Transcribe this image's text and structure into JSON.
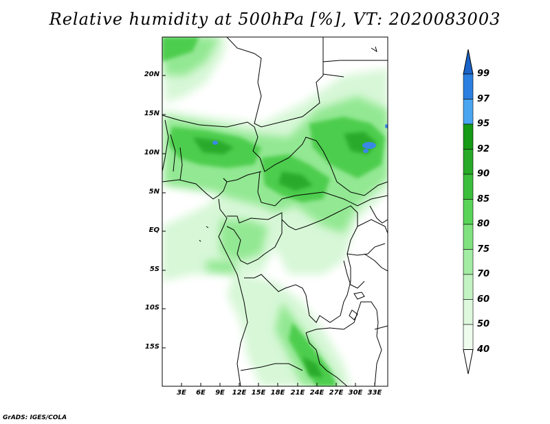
{
  "title": "Relative humidity at 500hPa [%], VT: 2020083003",
  "credit": "GrADS: IGES/COLA",
  "lat_labels": [
    "20N",
    "15N",
    "10N",
    "5N",
    "EQ",
    "5S",
    "10S",
    "15S"
  ],
  "lon_labels": [
    "3E",
    "6E",
    "9E",
    "12E",
    "15E",
    "18E",
    "21E",
    "24E",
    "27E",
    "30E",
    "33E"
  ],
  "colorbar": {
    "labels": [
      "99",
      "97",
      "95",
      "92",
      "90",
      "85",
      "80",
      "75",
      "70",
      "60",
      "50",
      "40"
    ],
    "colors": [
      "#1a63c9",
      "#2a7fe0",
      "#4aa5f0",
      "#149a14",
      "#27aa27",
      "#3cbe3c",
      "#59d459",
      "#7fe27f",
      "#a3eca3",
      "#c3f3c3",
      "#ddf8dd",
      "#eefcee"
    ]
  },
  "map_colors": {
    "light": "#d7f7d7",
    "mid": "#93e893",
    "strong": "#4dcd4d",
    "deep": "#2aaa2a",
    "water": "#3a88e6",
    "border": "#000000"
  }
}
